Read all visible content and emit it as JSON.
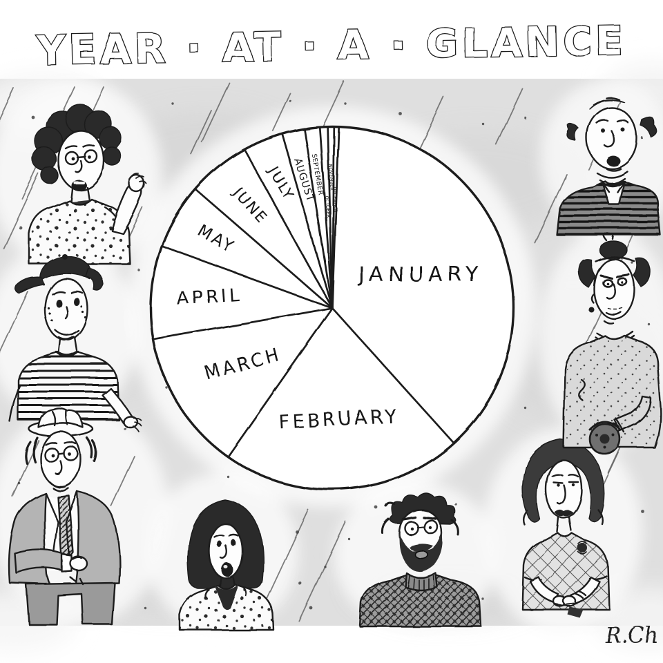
{
  "title": "YEAR-AT-A-GLANCE",
  "title_display": "YEAR · AT · A · GLANCE",
  "signature": "R.Ch",
  "panel": {
    "background_color": "#e0e0e0",
    "ink_color": "#1f1f1f",
    "texture": "diagonal rain-like pen strokes and scattered ink specks"
  },
  "chart_data": {
    "type": "pie",
    "title": "YEAR-AT-A-GLANCE",
    "categories": [
      "JANUARY",
      "FEBRUARY",
      "MARCH",
      "APRIL",
      "MAY",
      "JUNE",
      "JULY",
      "AUGUST",
      "SEPTEMBER",
      "OCTOBER",
      "NOVEMBER",
      "DECEMBER"
    ],
    "values_pct": [
      37.8,
      21.4,
      12.5,
      8.3,
      5.8,
      5.6,
      3.6,
      1.9,
      1.4,
      0.7,
      0.6,
      0.4
    ],
    "angles_deg": [
      136,
      77,
      45,
      30,
      21,
      20,
      13,
      7,
      5,
      2.5,
      2,
      1.5
    ],
    "start_angle_deg": 2,
    "rotation": "clockwise-from-top",
    "labels_inside": true,
    "legend": "none",
    "style": "hand-drawn single-panel cartoon, black ink pie on white circle over gray hatched wash"
  },
  "figures": [
    {
      "id": "woman-curly-hair",
      "desc": "woman with dark curly hair and round glasses, mouth open, speckled blouse, raised gesturing hand"
    },
    {
      "id": "man-backwards-cap",
      "desc": "freckled young man in backwards cap and horizontally striped t-shirt, smiling"
    },
    {
      "id": "man-hat-watch",
      "desc": "balding man in small hat and round glasses, gray overcoat, striped tie, checking his wristwatch"
    },
    {
      "id": "woman-black-bob",
      "desc": "woman with black bob haircut, mouth open, speckled blouse with dark kerchief"
    },
    {
      "id": "man-beard",
      "desc": "man with messy hair, round glasses and full dark beard, crosshatched knit sweater"
    },
    {
      "id": "woman-shaggy-hair",
      "desc": "woman with long shaggy hair and heavy-lidded eyes, argyle top with dark brooch, hands clasped"
    },
    {
      "id": "woman-topknot-purse",
      "desc": "older woman with sprouting topknot, tiny glasses, beaded necklaces, flecked cardigan, holding a round clasp purse"
    },
    {
      "id": "man-striped-sweater",
      "desc": "heavyset man with side tufts of hair, double chin, dark striped v-neck sweater over white shirt"
    }
  ]
}
